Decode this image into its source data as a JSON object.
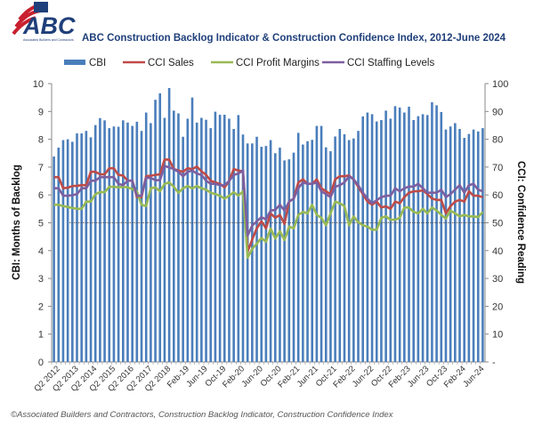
{
  "logo": {
    "text": "ABC",
    "subtext": "Associated Builders and Contractors"
  },
  "chart_data": {
    "type": "bar+line",
    "title": "ABC Construction Backlog Indicator & Construction Confidence Index, 2012-June 2024",
    "ylabel_left": "CBI: Months of Backlog",
    "ylabel_right": "CCI: Confidence Reading",
    "ylim_left": [
      0,
      10
    ],
    "ylim_right": [
      0,
      100
    ],
    "yticks_left": [
      "0",
      "1",
      "2",
      "3",
      "4",
      "5",
      "6",
      "7",
      "8",
      "9",
      "10"
    ],
    "yticks_right": [
      "-",
      "10",
      "20",
      "30",
      "40",
      "50",
      "60",
      "70",
      "80",
      "90",
      "100"
    ],
    "grid": false,
    "legend_position": "top",
    "reference_line_right": 50,
    "categories": [
      "Q1 2012",
      "Q2 2012",
      "Q3 2012",
      "Q4 2012",
      "Q1 2013",
      "Q2 2013",
      "Q3 2013",
      "Q4 2013",
      "Q1 2014",
      "Q2 2014",
      "Q3 2014",
      "Q4 2014",
      "Q1 2015",
      "Q2 2015",
      "Q3 2015",
      "Q4 2015",
      "Q1 2016",
      "Q2 2016",
      "Q3 2016",
      "Q4 2016",
      "Q1 2017",
      "Q2 2017",
      "Q3 2017",
      "Q4 2017",
      "Q1 2018",
      "Q2 2018",
      "Q3 2018",
      "Q4 2018",
      "Jan-19",
      "Feb-19",
      "Mar-19",
      "Apr-19",
      "May-19",
      "Jun-19",
      "Jul-19",
      "Aug-19",
      "Sep-19",
      "Oct-19",
      "Nov-19",
      "Dec-19",
      "Jan-20",
      "Feb-20",
      "Mar-20",
      "Apr-20",
      "May-20",
      "Jun-20",
      "Jul-20",
      "Aug-20",
      "Sep-20",
      "Oct-20",
      "Nov-20",
      "Dec-20",
      "Jan-21",
      "Feb-21",
      "Mar-21",
      "Apr-21",
      "May-21",
      "Jun-21",
      "Jul-21",
      "Aug-21",
      "Sep-21",
      "Oct-21",
      "Nov-21",
      "Dec-21",
      "Jan-22",
      "Feb-22",
      "Mar-22",
      "Apr-22",
      "May-22",
      "Jun-22",
      "Jul-22",
      "Aug-22",
      "Sep-22",
      "Oct-22",
      "Nov-22",
      "Dec-22",
      "Jan-23",
      "Feb-23",
      "Mar-23",
      "Apr-23",
      "May-23",
      "Jun-23",
      "Jul-23",
      "Aug-23",
      "Sep-23",
      "Oct-23",
      "Nov-23",
      "Dec-23",
      "Jan-24",
      "Feb-24",
      "Mar-24",
      "Apr-24",
      "May-24",
      "Jun-24"
    ],
    "x_tick_labels": [
      "Q2 2012",
      "Q2 2013",
      "Q2 2014",
      "Q2 2015",
      "Q2 2016",
      "Q2 2017",
      "Q2 2018",
      "Feb-19",
      "Jun-19",
      "Oct-19",
      "Feb-20",
      "Jun-20",
      "Oct-20",
      "Feb-21",
      "Jun-21",
      "Oct-21",
      "Feb-22",
      "Jun-22",
      "Oct-22",
      "Feb-23",
      "Jun-23",
      "Oct-23",
      "Feb-24",
      "Jun-24"
    ],
    "series": [
      {
        "name": "CBI",
        "type": "bar",
        "axis": "left",
        "color": "#4a7ebb",
        "values": [
          7.38,
          7.7,
          7.97,
          8.0,
          7.91,
          8.21,
          8.21,
          8.3,
          8.07,
          8.51,
          8.76,
          8.68,
          8.4,
          8.46,
          8.45,
          8.68,
          8.6,
          8.48,
          8.63,
          8.3,
          8.96,
          8.58,
          9.42,
          9.65,
          8.77,
          9.84,
          9.03,
          8.93,
          8.09,
          8.74,
          9.5,
          8.6,
          8.77,
          8.7,
          8.4,
          8.99,
          8.88,
          8.88,
          8.74,
          8.37,
          8.87,
          8.17,
          7.85,
          7.85,
          8.09,
          7.73,
          7.76,
          7.97,
          7.5,
          7.7,
          7.24,
          7.28,
          7.52,
          8.23,
          7.81,
          7.93,
          7.98,
          8.48,
          8.48,
          7.71,
          7.57,
          8.1,
          8.37,
          8.18,
          7.97,
          8.03,
          8.3,
          8.82,
          8.96,
          8.9,
          8.64,
          8.69,
          9.03,
          8.74,
          9.19,
          9.14,
          8.96,
          9.17,
          8.69,
          8.83,
          8.9,
          8.87,
          9.33,
          9.22,
          8.98,
          8.35,
          8.46,
          8.58,
          8.37,
          8.05,
          8.19,
          8.35,
          8.28,
          8.4
        ]
      },
      {
        "name": "CCI Sales",
        "type": "line",
        "axis": "right",
        "color": "#be4b48",
        "values": [
          66.4,
          66.4,
          62.4,
          62.6,
          63.2,
          63.3,
          63.5,
          63.5,
          68.3,
          68.3,
          67.4,
          67.4,
          69.6,
          69.6,
          67.2,
          67,
          65.1,
          65.1,
          59.2,
          59.2,
          66.7,
          66.9,
          67.2,
          67.4,
          72.7,
          72.7,
          69.3,
          68.8,
          68.3,
          69.6,
          69.3,
          70.2,
          68.5,
          67.2,
          65.1,
          64.5,
          64,
          62.7,
          65,
          69.3,
          68.8,
          68.5,
          39.6,
          44,
          48,
          50.5,
          48,
          53.4,
          51.8,
          52.8,
          49.6,
          57.6,
          58.7,
          64.5,
          65.6,
          64,
          64,
          65.6,
          62.4,
          61.3,
          60.3,
          65.6,
          66.7,
          66.7,
          67,
          65.6,
          62.9,
          60.3,
          57.6,
          56.5,
          57.6,
          55.5,
          55.9,
          55,
          57.6,
          57,
          59.2,
          60.8,
          61.3,
          61.3,
          61.7,
          60.3,
          58.7,
          58.2,
          58.2,
          53.4,
          55.9,
          57.6,
          58.2,
          57.6,
          61.3,
          59.7,
          59.7,
          59.2
        ]
      },
      {
        "name": "CCI Profit Margins",
        "type": "line",
        "axis": "right",
        "color": "#98b954",
        "values": [
          56.5,
          56.5,
          56,
          55.7,
          55.3,
          55,
          55,
          57.6,
          57.6,
          60.3,
          61,
          61,
          62.9,
          62.9,
          62.7,
          62.9,
          62.7,
          62.1,
          61.3,
          56.5,
          56,
          62.4,
          62.7,
          61.3,
          64,
          64.5,
          62.9,
          60.8,
          62.4,
          63.2,
          62.4,
          63.2,
          62.4,
          61.9,
          60.8,
          60.3,
          59.7,
          58.7,
          59.7,
          61,
          59.7,
          61.3,
          37.4,
          40.6,
          42.5,
          44.5,
          43.2,
          48,
          44.3,
          47,
          43.8,
          48.6,
          48,
          52.8,
          53.9,
          53.4,
          56.5,
          52.8,
          51.8,
          49.1,
          53.4,
          57.6,
          57,
          56,
          49.1,
          52.3,
          50.2,
          49.1,
          48.6,
          47.5,
          47.5,
          51.8,
          52.3,
          51.1,
          51.1,
          51.8,
          55.5,
          55.5,
          53.9,
          53.4,
          55,
          53.4,
          55.5,
          54.4,
          52.8,
          51.5,
          54.4,
          53.4,
          52.3,
          52.8,
          52.3,
          52.3,
          52,
          53.9
        ]
      },
      {
        "name": "CCI Staffing Levels",
        "type": "line",
        "axis": "right",
        "color": "#7d5fa0",
        "values": [
          62.4,
          62.4,
          59.7,
          59.7,
          59.9,
          60.3,
          62.4,
          62.4,
          65.1,
          65.1,
          66.4,
          66.4,
          66.4,
          66.4,
          64,
          63.5,
          65.1,
          65.1,
          59.7,
          59.7,
          66.1,
          66.1,
          65.3,
          65.3,
          70.4,
          69.9,
          69.3,
          68.3,
          66.7,
          68.3,
          68.8,
          67.7,
          67.2,
          65.1,
          64,
          64,
          63.5,
          63.5,
          65,
          67.2,
          67.7,
          68.8,
          45.4,
          49,
          50.5,
          52,
          51.2,
          54.4,
          54.6,
          56.5,
          54.4,
          57.6,
          58.7,
          62.4,
          64.5,
          64,
          64,
          64.5,
          61.3,
          60.3,
          59.2,
          62.9,
          63.5,
          64.5,
          66.7,
          65.6,
          63.5,
          60.8,
          58.7,
          57,
          58.1,
          59.2,
          59.7,
          59.7,
          62.4,
          61.3,
          62.4,
          63,
          63,
          64,
          62.4,
          60.8,
          60.8,
          60.8,
          61.9,
          59.2,
          60.3,
          61.9,
          63.5,
          60.8,
          63.5,
          64,
          61.9,
          61.3
        ]
      }
    ]
  },
  "footer": "©Associated Builders and Contractors, Construction Backlog Indicator, Construction Confidence Index"
}
